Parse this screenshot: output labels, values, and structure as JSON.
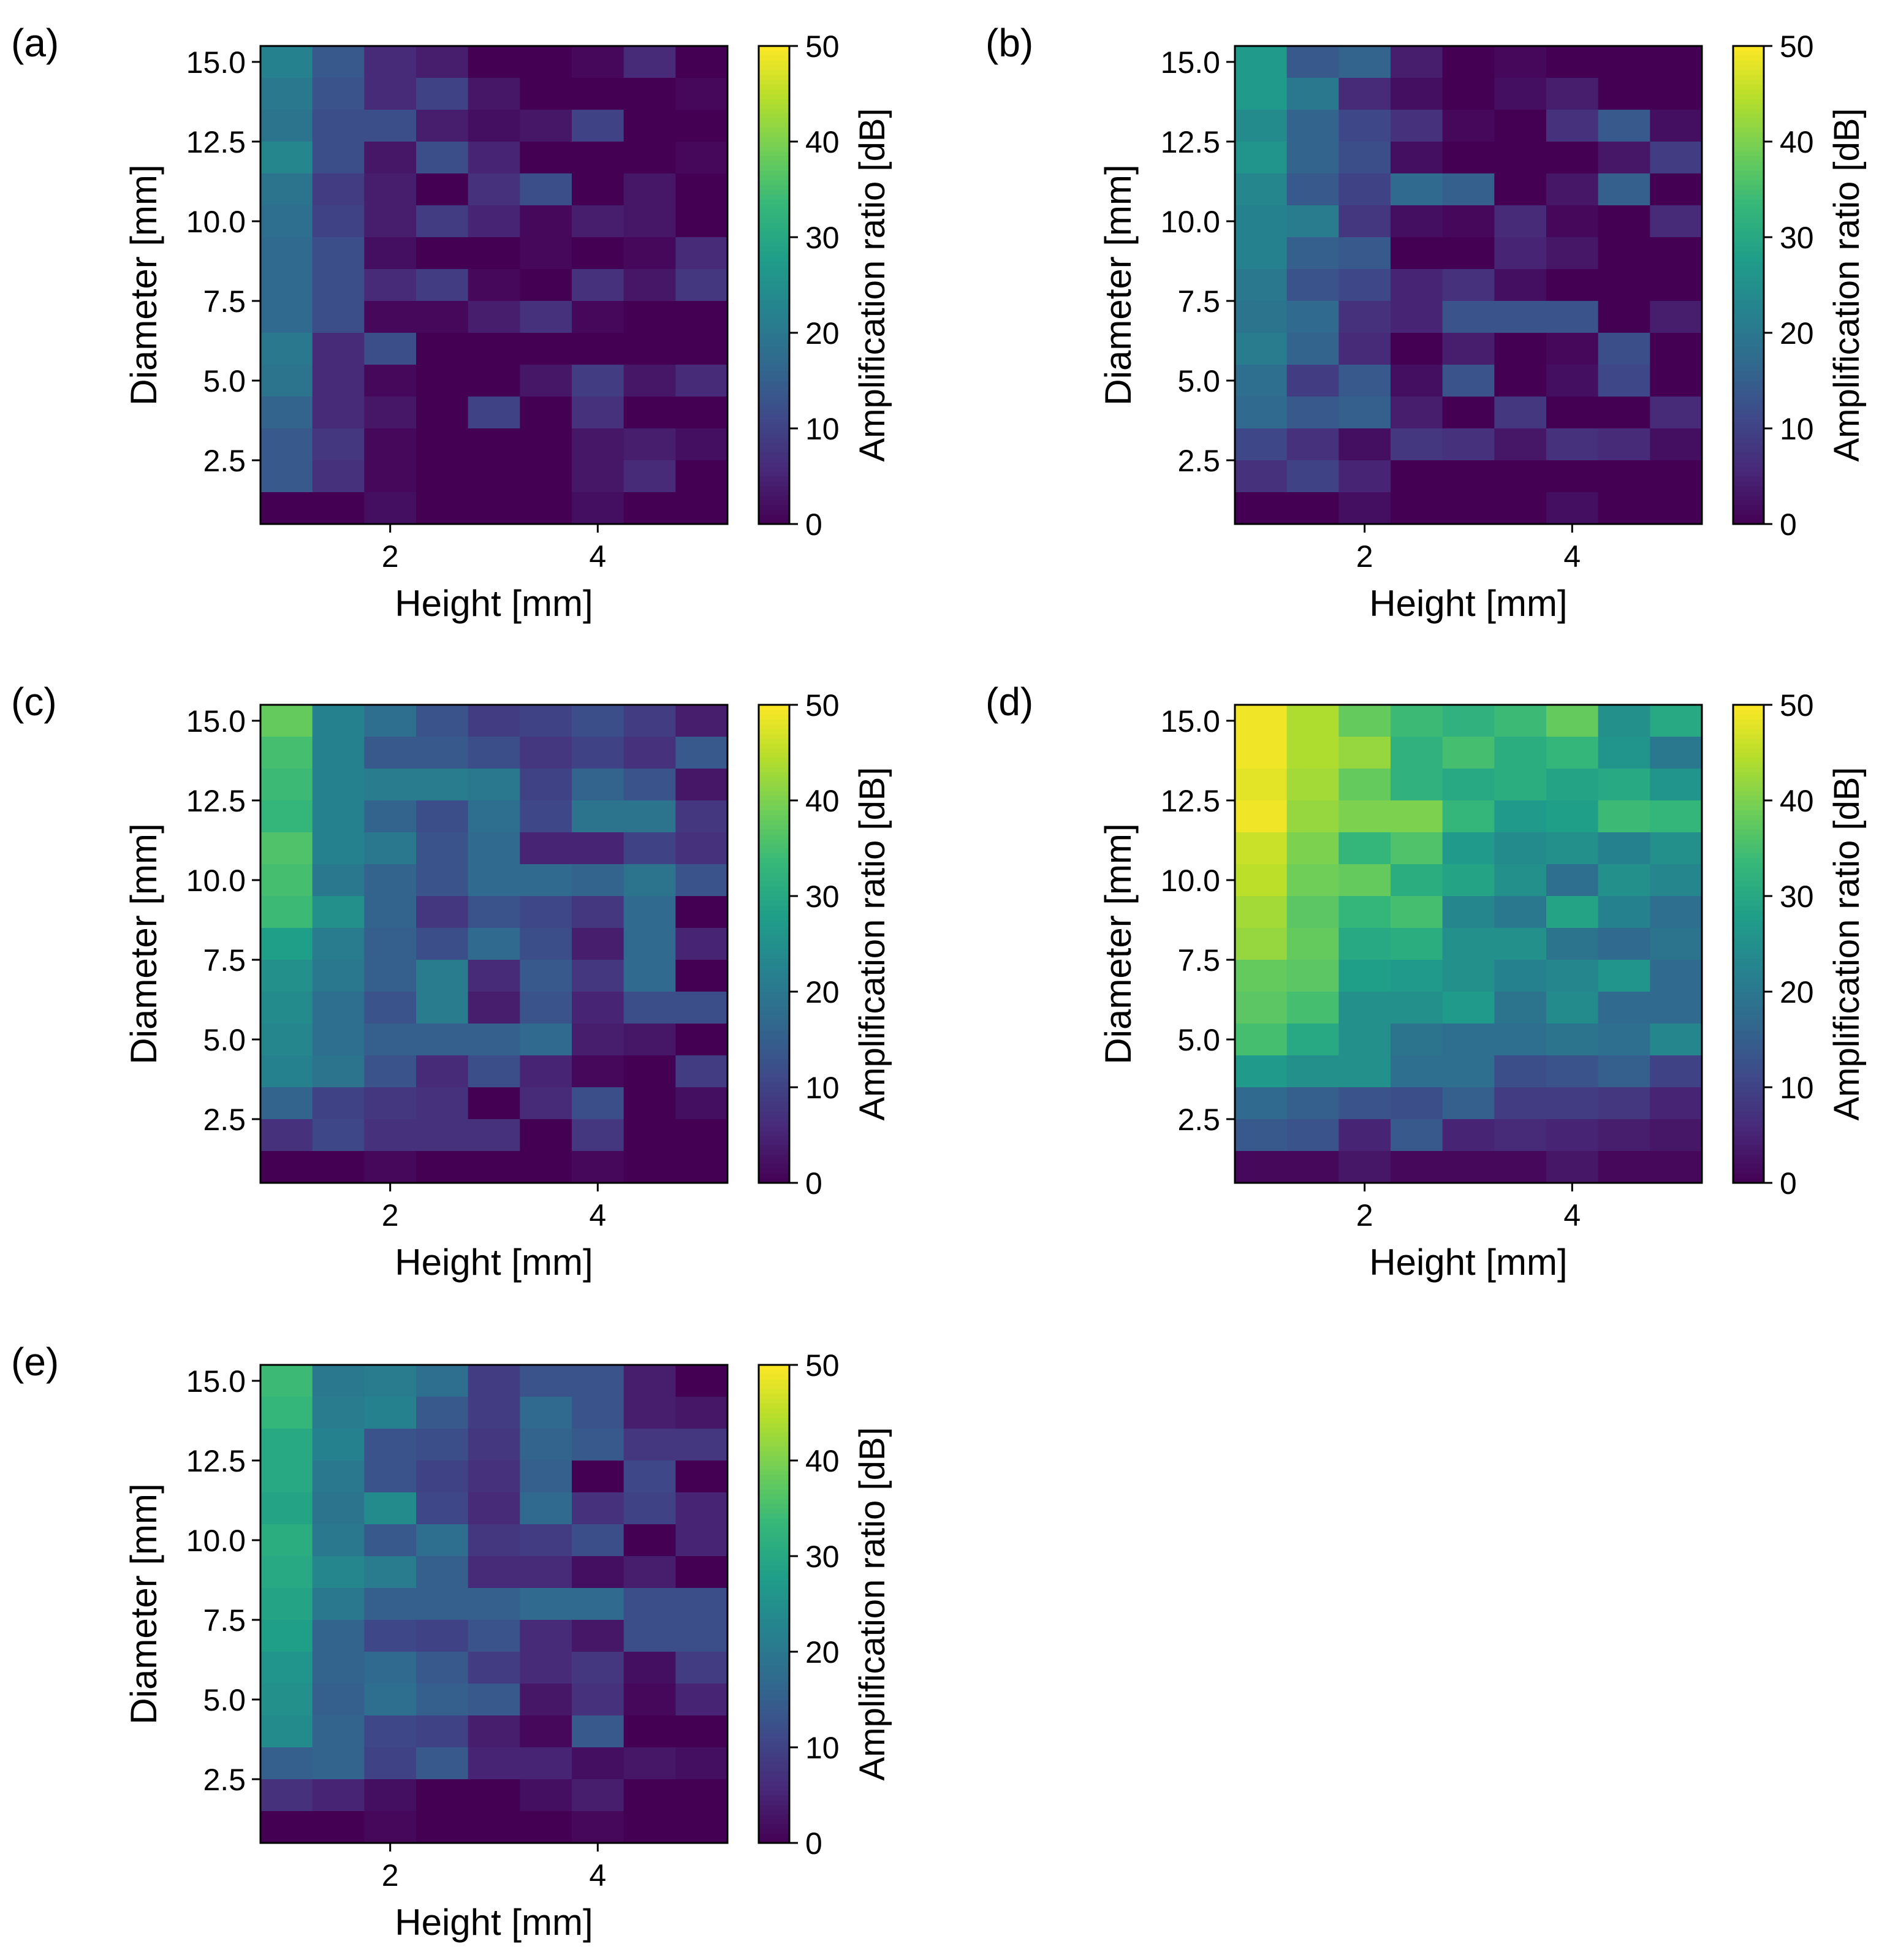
{
  "colormap": {
    "name": "viridis",
    "stops": [
      "#440154",
      "#482878",
      "#3e4989",
      "#31688e",
      "#26828e",
      "#1f9e89",
      "#35b779",
      "#6ece58",
      "#b5de2b",
      "#fde725"
    ]
  },
  "frame_color": "#000000",
  "chart_data": [
    {
      "type": "heatmap",
      "panel_label": "(a)",
      "xlabel": "Height [mm]",
      "ylabel": "Diameter [mm]",
      "x_centers": [
        1.0,
        1.5,
        2.0,
        2.5,
        3.0,
        3.5,
        4.0,
        4.5,
        5.0
      ],
      "y_centers": [
        1.0,
        2.0,
        3.0,
        4.0,
        5.0,
        6.0,
        7.0,
        8.0,
        9.0,
        10.0,
        11.0,
        12.0,
        13.0,
        14.0,
        15.0
      ],
      "xlim": [
        0.75,
        5.25
      ],
      "ylim": [
        0.5,
        15.5
      ],
      "xticks": [
        2,
        4
      ],
      "xtick_labels": [
        "2",
        "4"
      ],
      "yticks": [
        2.5,
        5.0,
        7.5,
        10.0,
        12.5,
        15.0
      ],
      "ytick_labels": [
        "2.5",
        "5.0",
        "7.5",
        "10.0",
        "12.5",
        "15.0"
      ],
      "colorbar": {
        "label": "Amplification ratio [dB]",
        "vmin": 0,
        "vmax": 50,
        "ticks": [
          0,
          10,
          20,
          30,
          40,
          50
        ],
        "tick_labels": [
          "0",
          "10",
          "20",
          "30",
          "40",
          "50"
        ]
      },
      "rows": [
        [
          22,
          14,
          6,
          4,
          0,
          0,
          1,
          6,
          0
        ],
        [
          20,
          13,
          6,
          10,
          3,
          0,
          0,
          0,
          1
        ],
        [
          19,
          12,
          12,
          4,
          2,
          3,
          10,
          0,
          0
        ],
        [
          23,
          12,
          3,
          12,
          5,
          0,
          0,
          0,
          1
        ],
        [
          19,
          9,
          4,
          0,
          7,
          12,
          0,
          3,
          0
        ],
        [
          18,
          10,
          4,
          9,
          5,
          1,
          4,
          3,
          0
        ],
        [
          17,
          12,
          2,
          0,
          0,
          1,
          0,
          1,
          6
        ],
        [
          17,
          12,
          6,
          9,
          1,
          0,
          7,
          3,
          8
        ],
        [
          17,
          12,
          1,
          1,
          4,
          7,
          1,
          0,
          0
        ],
        [
          20,
          6,
          12,
          0,
          0,
          0,
          0,
          0,
          0
        ],
        [
          19,
          6,
          1,
          0,
          0,
          3,
          9,
          3,
          6
        ],
        [
          16,
          6,
          3,
          0,
          10,
          0,
          7,
          0,
          0
        ],
        [
          14,
          8,
          1,
          0,
          0,
          0,
          3,
          4,
          2
        ],
        [
          14,
          7,
          1,
          0,
          0,
          0,
          3,
          6,
          0
        ],
        [
          0,
          0,
          2,
          0,
          0,
          0,
          2,
          0,
          0
        ]
      ]
    },
    {
      "type": "heatmap",
      "panel_label": "(b)",
      "xlabel": "Height [mm]",
      "ylabel": "Diameter [mm]",
      "x_centers": [
        1.0,
        1.5,
        2.0,
        2.5,
        3.0,
        3.5,
        4.0,
        4.5,
        5.0
      ],
      "y_centers": [
        1.0,
        2.0,
        3.0,
        4.0,
        5.0,
        6.0,
        7.0,
        8.0,
        9.0,
        10.0,
        11.0,
        12.0,
        13.0,
        14.0,
        15.0
      ],
      "xlim": [
        0.75,
        5.25
      ],
      "ylim": [
        0.5,
        15.5
      ],
      "xticks": [
        2,
        4
      ],
      "xtick_labels": [
        "2",
        "4"
      ],
      "yticks": [
        2.5,
        5.0,
        7.5,
        10.0,
        12.5,
        15.0
      ],
      "ytick_labels": [
        "2.5",
        "5.0",
        "7.5",
        "10.0",
        "12.5",
        "15.0"
      ],
      "colorbar": {
        "label": "Amplification ratio [dB]",
        "vmin": 0,
        "vmax": 50,
        "ticks": [
          0,
          10,
          20,
          30,
          40,
          50
        ],
        "tick_labels": [
          "0",
          "10",
          "20",
          "30",
          "40",
          "50"
        ]
      },
      "rows": [
        [
          27,
          14,
          16,
          4,
          0,
          1,
          0,
          0,
          0
        ],
        [
          27,
          20,
          6,
          2,
          0,
          2,
          4,
          0,
          0
        ],
        [
          24,
          16,
          11,
          7,
          1,
          0,
          7,
          14,
          2
        ],
        [
          26,
          16,
          12,
          2,
          0,
          0,
          0,
          3,
          9
        ],
        [
          23,
          14,
          10,
          17,
          15,
          0,
          3,
          15,
          0
        ],
        [
          22,
          21,
          8,
          2,
          1,
          6,
          1,
          0,
          6
        ],
        [
          22,
          15,
          14,
          0,
          0,
          5,
          3,
          0,
          0
        ],
        [
          20,
          13,
          11,
          5,
          7,
          2,
          0,
          0,
          0
        ],
        [
          19,
          17,
          7,
          5,
          13,
          13,
          13,
          0,
          4
        ],
        [
          21,
          16,
          6,
          0,
          4,
          0,
          1,
          12,
          0
        ],
        [
          18,
          9,
          14,
          2,
          13,
          0,
          2,
          11,
          0
        ],
        [
          17,
          14,
          15,
          4,
          0,
          8,
          0,
          0,
          6
        ],
        [
          11,
          7,
          2,
          8,
          7,
          3,
          7,
          6,
          2
        ],
        [
          7,
          10,
          5,
          0,
          0,
          0,
          0,
          0,
          0
        ],
        [
          0,
          0,
          2,
          0,
          0,
          0,
          2,
          0,
          0
        ]
      ]
    },
    {
      "type": "heatmap",
      "panel_label": "(c)",
      "xlabel": "Height [mm]",
      "ylabel": "Diameter [mm]",
      "x_centers": [
        1.0,
        1.5,
        2.0,
        2.5,
        3.0,
        3.5,
        4.0,
        4.5,
        5.0
      ],
      "y_centers": [
        1.0,
        2.0,
        3.0,
        4.0,
        5.0,
        6.0,
        7.0,
        8.0,
        9.0,
        10.0,
        11.0,
        12.0,
        13.0,
        14.0,
        15.0
      ],
      "xlim": [
        0.75,
        5.25
      ],
      "ylim": [
        0.5,
        15.5
      ],
      "xticks": [
        2,
        4
      ],
      "xtick_labels": [
        "2",
        "4"
      ],
      "yticks": [
        2.5,
        5.0,
        7.5,
        10.0,
        12.5,
        15.0
      ],
      "ytick_labels": [
        "2.5",
        "5.0",
        "7.5",
        "10.0",
        "12.5",
        "15.0"
      ],
      "colorbar": {
        "label": "Amplification ratio [dB]",
        "vmin": 0,
        "vmax": 50,
        "ticks": [
          0,
          10,
          20,
          30,
          40,
          50
        ],
        "tick_labels": [
          "0",
          "10",
          "20",
          "30",
          "40",
          "50"
        ]
      },
      "rows": [
        [
          38,
          22,
          18,
          13,
          9,
          10,
          12,
          9,
          4
        ],
        [
          35,
          22,
          14,
          14,
          12,
          8,
          10,
          7,
          14
        ],
        [
          34,
          22,
          21,
          21,
          20,
          10,
          16,
          13,
          3
        ],
        [
          33,
          22,
          16,
          12,
          18,
          11,
          19,
          19,
          8
        ],
        [
          36,
          22,
          20,
          13,
          17,
          5,
          5,
          10,
          7
        ],
        [
          35,
          20,
          16,
          13,
          17,
          17,
          16,
          19,
          13
        ],
        [
          34,
          25,
          16,
          8,
          13,
          11,
          8,
          17,
          0
        ],
        [
          28,
          21,
          15,
          12,
          17,
          12,
          4,
          17,
          5
        ],
        [
          25,
          20,
          15,
          21,
          6,
          14,
          8,
          17,
          0
        ],
        [
          24,
          18,
          13,
          21,
          4,
          13,
          5,
          12,
          12
        ],
        [
          23,
          18,
          15,
          15,
          15,
          17,
          4,
          3,
          0
        ],
        [
          22,
          19,
          13,
          6,
          12,
          5,
          1,
          0,
          9
        ],
        [
          16,
          10,
          8,
          7,
          0,
          6,
          12,
          0,
          2
        ],
        [
          7,
          11,
          7,
          7,
          7,
          0,
          8,
          0,
          0
        ],
        [
          0,
          0,
          1,
          0,
          0,
          0,
          1,
          0,
          0
        ]
      ]
    },
    {
      "type": "heatmap",
      "panel_label": "(d)",
      "xlabel": "Height [mm]",
      "ylabel": "Diameter [mm]",
      "x_centers": [
        1.0,
        1.5,
        2.0,
        2.5,
        3.0,
        3.5,
        4.0,
        4.5,
        5.0
      ],
      "y_centers": [
        1.0,
        2.0,
        3.0,
        4.0,
        5.0,
        6.0,
        7.0,
        8.0,
        9.0,
        10.0,
        11.0,
        12.0,
        13.0,
        14.0,
        15.0
      ],
      "xlim": [
        0.75,
        5.25
      ],
      "ylim": [
        0.5,
        15.5
      ],
      "xticks": [
        2,
        4
      ],
      "xtick_labels": [
        "2",
        "4"
      ],
      "yticks": [
        2.5,
        5.0,
        7.5,
        10.0,
        12.5,
        15.0
      ],
      "ytick_labels": [
        "2.5",
        "5.0",
        "7.5",
        "10.0",
        "12.5",
        "15.0"
      ],
      "colorbar": {
        "label": "Amplification ratio [dB]",
        "vmin": 0,
        "vmax": 50,
        "ticks": [
          0,
          10,
          20,
          30,
          40,
          50
        ],
        "tick_labels": [
          "0",
          "10",
          "20",
          "30",
          "40",
          "50"
        ]
      },
      "rows": [
        [
          49,
          44,
          38,
          34,
          32,
          34,
          38,
          25,
          30
        ],
        [
          49,
          44,
          42,
          32,
          35,
          31,
          33,
          26,
          20
        ],
        [
          48,
          43,
          38,
          32,
          30,
          31,
          29,
          30,
          26
        ],
        [
          49,
          42,
          40,
          40,
          33,
          27,
          28,
          34,
          33
        ],
        [
          46,
          40,
          33,
          36,
          27,
          24,
          25,
          22,
          25
        ],
        [
          45,
          39,
          38,
          31,
          29,
          25,
          18,
          25,
          23
        ],
        [
          43,
          37,
          33,
          35,
          23,
          20,
          29,
          22,
          18
        ],
        [
          42,
          38,
          30,
          31,
          25,
          25,
          19,
          17,
          19
        ],
        [
          38,
          37,
          28,
          27,
          25,
          22,
          23,
          26,
          17
        ],
        [
          37,
          35,
          25,
          25,
          27,
          19,
          24,
          17,
          17
        ],
        [
          35,
          30,
          25,
          19,
          18,
          18,
          19,
          18,
          23
        ],
        [
          27,
          25,
          25,
          18,
          18,
          12,
          13,
          15,
          10
        ],
        [
          17,
          15,
          13,
          12,
          15,
          9,
          9,
          8,
          5
        ],
        [
          14,
          13,
          5,
          14,
          5,
          6,
          5,
          4,
          3
        ],
        [
          1,
          1,
          3,
          1,
          1,
          1,
          3,
          1,
          1
        ]
      ]
    },
    {
      "type": "heatmap",
      "panel_label": "(e)",
      "xlabel": "Height [mm]",
      "ylabel": "Diameter [mm]",
      "x_centers": [
        1.0,
        1.5,
        2.0,
        2.5,
        3.0,
        3.5,
        4.0,
        4.5,
        5.0
      ],
      "y_centers": [
        1.0,
        2.0,
        3.0,
        4.0,
        5.0,
        6.0,
        7.0,
        8.0,
        9.0,
        10.0,
        11.0,
        12.0,
        13.0,
        14.0,
        15.0
      ],
      "xlim": [
        0.75,
        5.25
      ],
      "ylim": [
        0.5,
        15.5
      ],
      "xticks": [
        2,
        4
      ],
      "xtick_labels": [
        "2",
        "4"
      ],
      "yticks": [
        2.5,
        5.0,
        7.5,
        10.0,
        12.5,
        15.0
      ],
      "ytick_labels": [
        "2.5",
        "5.0",
        "7.5",
        "10.0",
        "12.5",
        "15.0"
      ],
      "colorbar": {
        "label": "Amplification ratio [dB]",
        "vmin": 0,
        "vmax": 50,
        "ticks": [
          0,
          10,
          20,
          30,
          40,
          50
        ],
        "tick_labels": [
          "0",
          "10",
          "20",
          "30",
          "40",
          "50"
        ]
      },
      "rows": [
        [
          34,
          20,
          21,
          18,
          9,
          13,
          13,
          4,
          0
        ],
        [
          33,
          21,
          22,
          14,
          9,
          17,
          13,
          4,
          3
        ],
        [
          30,
          22,
          13,
          12,
          8,
          16,
          14,
          8,
          8
        ],
        [
          30,
          20,
          13,
          10,
          7,
          15,
          0,
          11,
          0
        ],
        [
          29,
          19,
          24,
          11,
          6,
          17,
          7,
          10,
          5
        ],
        [
          31,
          20,
          14,
          18,
          8,
          9,
          12,
          0,
          5
        ],
        [
          30,
          23,
          21,
          15,
          6,
          6,
          2,
          4,
          0
        ],
        [
          29,
          20,
          15,
          15,
          15,
          17,
          17,
          12,
          12
        ],
        [
          28,
          16,
          11,
          10,
          13,
          6,
          3,
          12,
          12
        ],
        [
          26,
          16,
          17,
          14,
          9,
          6,
          8,
          2,
          9
        ],
        [
          25,
          15,
          18,
          15,
          14,
          3,
          7,
          1,
          5
        ],
        [
          24,
          16,
          11,
          10,
          4,
          1,
          14,
          0,
          0
        ],
        [
          15,
          16,
          10,
          14,
          5,
          5,
          2,
          3,
          2
        ],
        [
          7,
          5,
          2,
          0,
          0,
          2,
          4,
          0,
          0
        ],
        [
          0,
          0,
          1,
          0,
          0,
          0,
          1,
          0,
          0
        ]
      ]
    }
  ]
}
